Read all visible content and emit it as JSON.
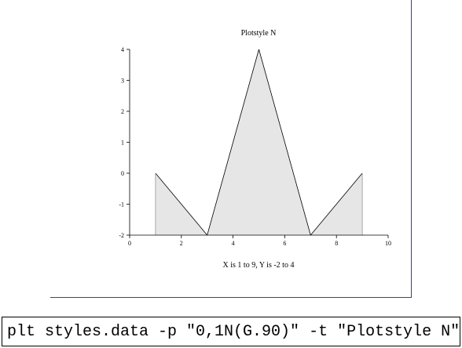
{
  "chart_data": {
    "type": "area",
    "title": "Plotstyle N",
    "xlabel": "X is 1 to 9,  Y is -2 to 4",
    "ylabel": "",
    "xlim": [
      0,
      10
    ],
    "ylim": [
      -2,
      4
    ],
    "x_ticks": [
      "0",
      "2",
      "4",
      "6",
      "8",
      "10"
    ],
    "y_ticks": [
      "-2",
      "-1",
      "0",
      "1",
      "2",
      "3",
      "4"
    ],
    "x": [
      1,
      3,
      5,
      7,
      9
    ],
    "y": [
      0,
      -2,
      4,
      -2,
      0
    ],
    "fill_color": "#e6e6e6",
    "line_color": "#000000",
    "grid": false
  },
  "command": {
    "text": "plt styles.data -p \"0,1N(G.90)\" -t \"Plotstyle N\""
  },
  "colors": {
    "frame_border": "#3a3aa8"
  }
}
